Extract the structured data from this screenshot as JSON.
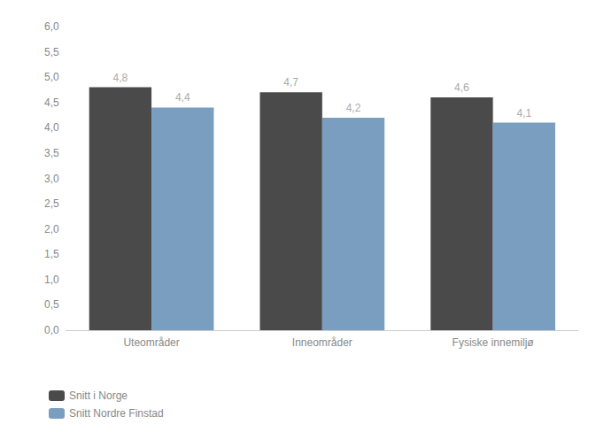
{
  "chart_data": {
    "type": "bar",
    "categories": [
      "Uteområder",
      "Inneområder",
      "Fysiske innemiljø"
    ],
    "series": [
      {
        "name": "Snitt i Norge",
        "color": "#4a4a4a",
        "values": [
          4.8,
          4.7,
          4.6
        ],
        "value_labels": [
          "4,8",
          "4,7",
          "4,6"
        ]
      },
      {
        "name": "Snitt Nordre Finstad",
        "color": "#7a9ec0",
        "values": [
          4.4,
          4.2,
          4.1
        ],
        "value_labels": [
          "4,4",
          "4,2",
          "4,1"
        ]
      }
    ],
    "ylim": [
      0,
      6.0
    ],
    "yticks": [
      {
        "value": 0.0,
        "label": "0,0"
      },
      {
        "value": 0.5,
        "label": "0,5"
      },
      {
        "value": 1.0,
        "label": "1,0"
      },
      {
        "value": 1.5,
        "label": "1,5"
      },
      {
        "value": 2.0,
        "label": "2,0"
      },
      {
        "value": 2.5,
        "label": "2,5"
      },
      {
        "value": 3.0,
        "label": "3,0"
      },
      {
        "value": 3.5,
        "label": "3,5"
      },
      {
        "value": 4.0,
        "label": "4,0"
      },
      {
        "value": 4.5,
        "label": "4,5"
      },
      {
        "value": 5.0,
        "label": "5,0"
      },
      {
        "value": 5.5,
        "label": "5,5"
      },
      {
        "value": 6.0,
        "label": "6,0"
      }
    ],
    "grid": false,
    "legend": "bottom left",
    "data_labels": true
  }
}
